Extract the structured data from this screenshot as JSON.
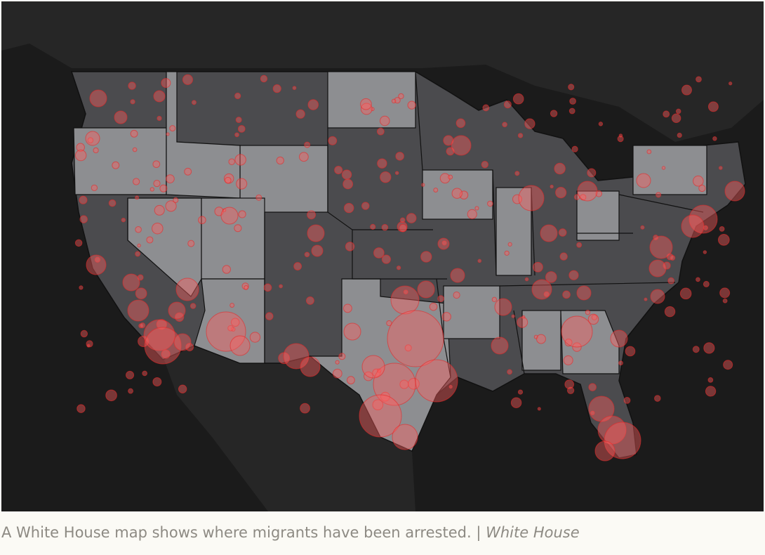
{
  "caption": {
    "text": "A White House map shows where migrants have been arrested.",
    "separator": "|",
    "credit": "White House"
  }
}
